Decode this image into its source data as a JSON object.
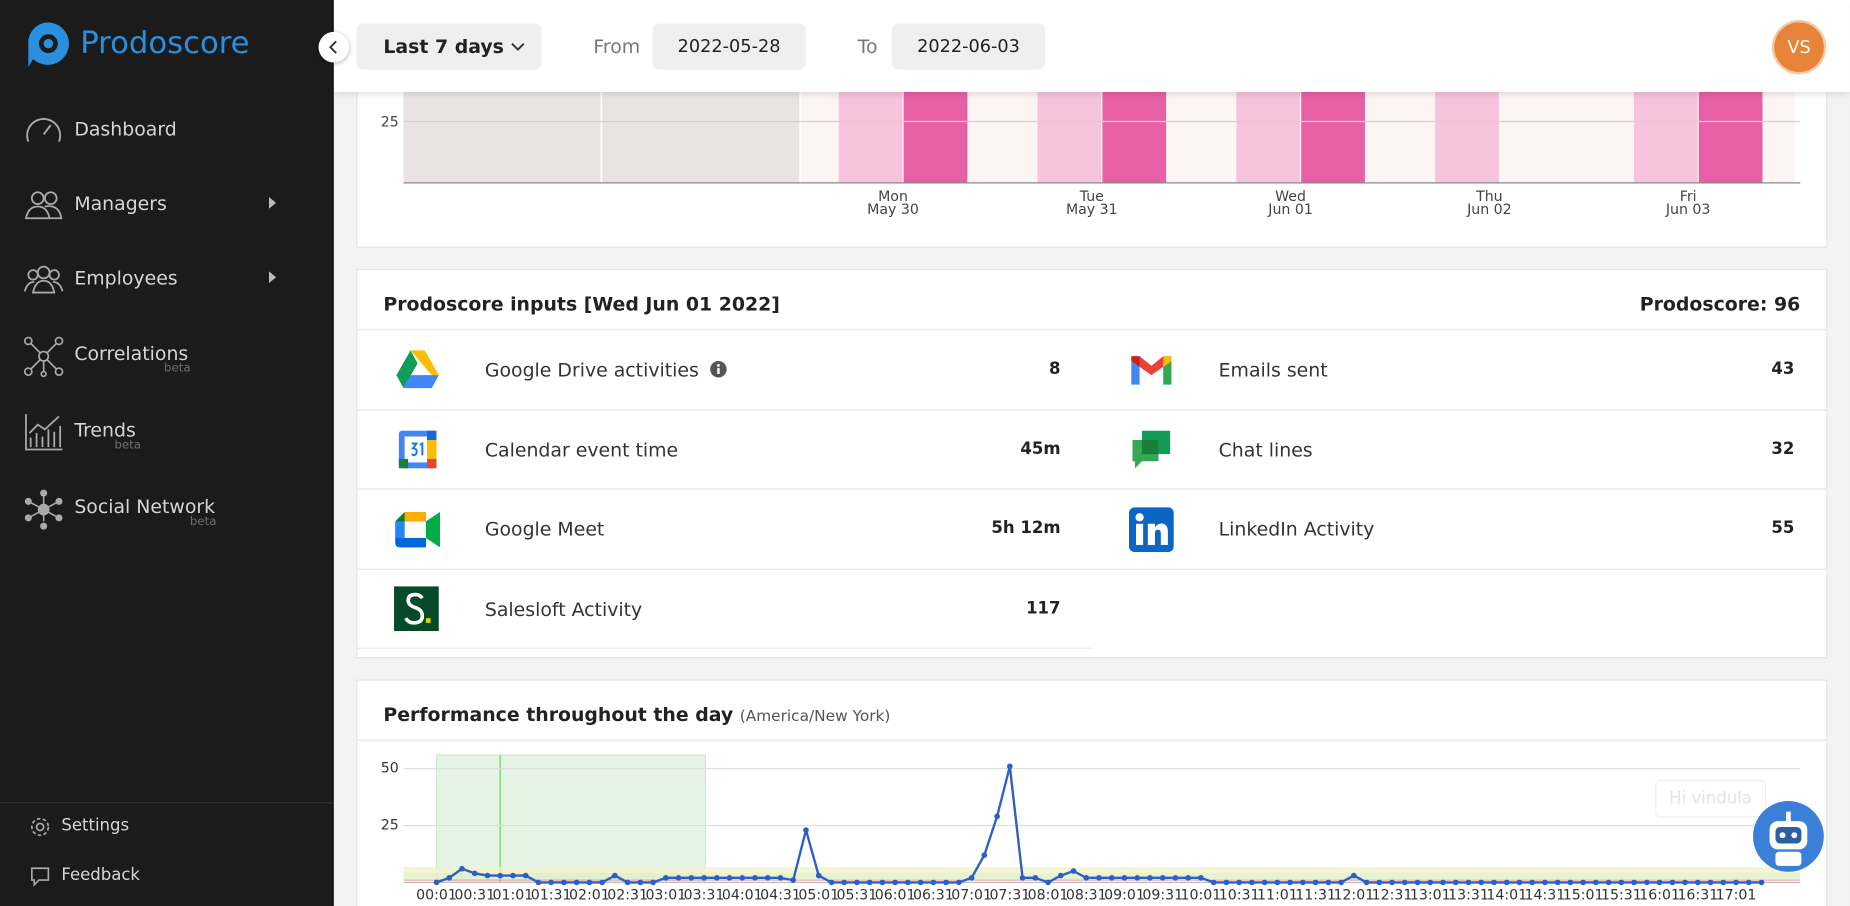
{
  "sidebar": {
    "brand": "Prodoscore",
    "nav": [
      {
        "label": "Dashboard"
      },
      {
        "label": "Managers"
      },
      {
        "label": "Employees"
      },
      {
        "label": "Correlations",
        "badge": "beta"
      },
      {
        "label": "Trends",
        "badge": "beta"
      },
      {
        "label": "Social Network",
        "badge": "beta"
      }
    ],
    "footer": [
      "Settings",
      "Feedback"
    ]
  },
  "topbar": {
    "range": "Last 7 days",
    "from_label": "From",
    "from": "2022-05-28",
    "to_label": "To",
    "to": "2022-06-03",
    "avatar": "VS"
  },
  "weekly_chart": {
    "yticks": [
      25
    ],
    "days": [
      {
        "day": "Mon",
        "date": "May 30"
      },
      {
        "day": "Tue",
        "date": "May 31"
      },
      {
        "day": "Wed",
        "date": "Jun 01"
      },
      {
        "day": "Thu",
        "date": "Jun 02"
      },
      {
        "day": "Fri",
        "date": "Jun 03"
      }
    ]
  },
  "inputs": {
    "title": "Prodoscore inputs [Wed Jun 01 2022]",
    "score": "Prodoscore: 96",
    "items": [
      {
        "label": "Google Drive activities",
        "value": 8
      },
      {
        "label": "Emails sent",
        "value": 43
      },
      {
        "label": "Calendar event time",
        "value": "45m"
      },
      {
        "label": "Chat lines",
        "value": 32
      },
      {
        "label": "Google Meet",
        "value": "5h 12m"
      },
      {
        "label": "LinkedIn Activity",
        "value": 55
      },
      {
        "label": "Salesloft Activity",
        "value": 117
      }
    ]
  },
  "chart_data": {
    "type": "line",
    "title": "Performance throughout the day",
    "subtitle": "(America/New York)",
    "color": "#2d5fc6",
    "ylim": [
      0,
      56
    ],
    "yticks": [
      25,
      50
    ],
    "categories": [
      "00:01",
      null,
      null,
      "00:31",
      null,
      null,
      "01:01",
      null,
      null,
      "01:31",
      null,
      null,
      "02:01",
      null,
      null,
      "02:31",
      null,
      null,
      "03:01",
      null,
      null,
      "03:31",
      null,
      null,
      "04:01",
      null,
      null,
      "04:31",
      null,
      null,
      "05:01",
      null,
      null,
      "05:31",
      null,
      null,
      "06:01",
      null,
      null,
      "06:31",
      null,
      null,
      "07:01",
      null,
      null,
      "07:31",
      null,
      null,
      "08:01",
      null,
      null,
      "08:31",
      null,
      null,
      "09:01",
      null,
      null,
      "09:31",
      null,
      null,
      "10:01",
      null,
      null,
      "10:31",
      null,
      null,
      "11:01",
      null,
      null,
      "11:31",
      null,
      null,
      "12:01",
      null,
      null,
      "12:31",
      null,
      null,
      "13:01",
      null,
      null,
      "13:31",
      null,
      null,
      "14:01",
      null,
      null,
      "14:31",
      null,
      null,
      "15:01",
      null,
      null,
      "15:31",
      null,
      null,
      "16:01",
      null,
      null,
      "16:31",
      null,
      null,
      "17:01",
      null,
      null
    ],
    "values": [
      0,
      2,
      6,
      4,
      3,
      3,
      3,
      3,
      0,
      0,
      0,
      0,
      0,
      0,
      3,
      0,
      0,
      0,
      2,
      2,
      2,
      2,
      2,
      2,
      2,
      2,
      2,
      2,
      1,
      23,
      3,
      0,
      0,
      0,
      0,
      0,
      0,
      0,
      0,
      0,
      0,
      0,
      2,
      12,
      29,
      51,
      2,
      2,
      0,
      3,
      5,
      2,
      2,
      2,
      2,
      2,
      2,
      2,
      2,
      2,
      2,
      0,
      0,
      0,
      0,
      0,
      0,
      0,
      0,
      0,
      0,
      0,
      3,
      0,
      0,
      0,
      0,
      0,
      0,
      0,
      0,
      0,
      0,
      0,
      0,
      0,
      0,
      0,
      0,
      0,
      0,
      0,
      0,
      0,
      0,
      0,
      0,
      0,
      0,
      0,
      0,
      0,
      0,
      0,
      0
    ]
  },
  "chatbot_hint": "Hi vindula"
}
